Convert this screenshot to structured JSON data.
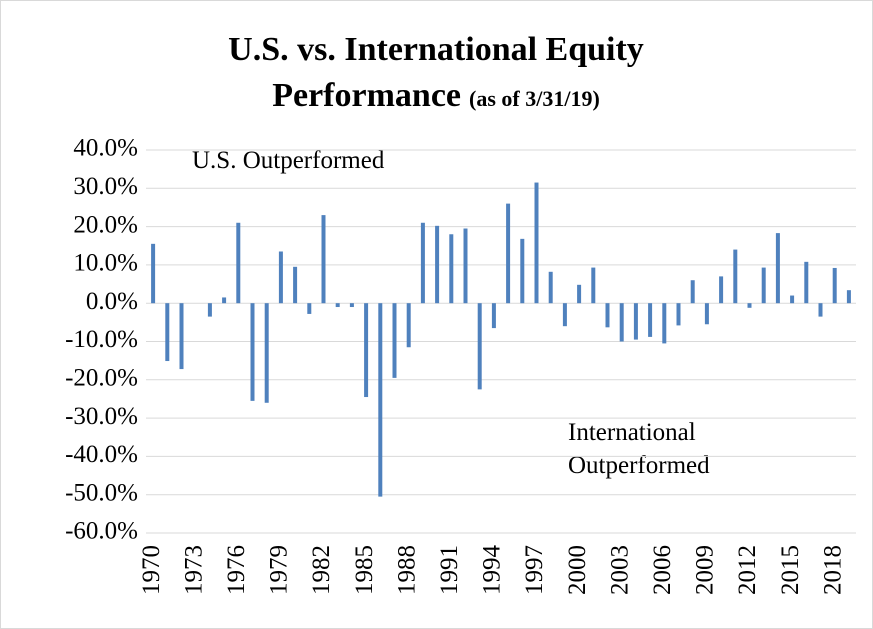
{
  "chart_data": {
    "type": "bar",
    "title": [
      "U.S. vs. International Equity",
      "Performance"
    ],
    "subtitle": "(as of 3/31/19)",
    "annotations": [
      [
        "U.S. Outperformed"
      ],
      [
        "International",
        "Outperformed"
      ]
    ],
    "categories": [
      "1970",
      null,
      null,
      "1973",
      null,
      null,
      "1976",
      null,
      null,
      "1979",
      null,
      null,
      "1982",
      null,
      null,
      "1985",
      null,
      null,
      "1988",
      null,
      null,
      "1991",
      null,
      null,
      "1994",
      null,
      null,
      "1997",
      null,
      null,
      "2000",
      null,
      null,
      "2003",
      null,
      null,
      "2006",
      null,
      null,
      "2009",
      null,
      null,
      "2012",
      null,
      null,
      "2015",
      null,
      null,
      "2018",
      null
    ],
    "values": [
      15.5,
      -15.1,
      -17.2,
      0,
      -3.5,
      1.5,
      21,
      -25.5,
      -26,
      13.5,
      9.5,
      -2.8,
      23,
      -1,
      -1,
      -24.5,
      -50.5,
      -19.5,
      -11.5,
      21,
      20.2,
      18,
      19.5,
      -22.5,
      -6.5,
      26,
      16.8,
      31.5,
      8.2,
      -6,
      4.8,
      9.3,
      -6.3,
      -10,
      -9.5,
      -8.8,
      -10.5,
      -5.8,
      6,
      -5.5,
      7,
      14,
      -1.2,
      9.3,
      18.3,
      2,
      10.8,
      -3.5,
      9.2,
      3.4
    ],
    "color": "#4f81bd",
    "ylim": [
      -60,
      40
    ],
    "yticks": [
      {
        "value": 40,
        "label": "40.0%"
      },
      {
        "value": 30,
        "label": "30.0%"
      },
      {
        "value": 20,
        "label": "20.0%"
      },
      {
        "value": 10,
        "label": "10.0%"
      },
      {
        "value": 0,
        "label": "0.0%"
      },
      {
        "value": -10,
        "label": "-10.0%"
      },
      {
        "value": -20,
        "label": "-20.0%"
      },
      {
        "value": -30,
        "label": "-30.0%"
      },
      {
        "value": -40,
        "label": "-40.0%"
      },
      {
        "value": -50,
        "label": "-50.0%"
      },
      {
        "value": -60,
        "label": "-60.0%"
      }
    ],
    "grid": true
  }
}
